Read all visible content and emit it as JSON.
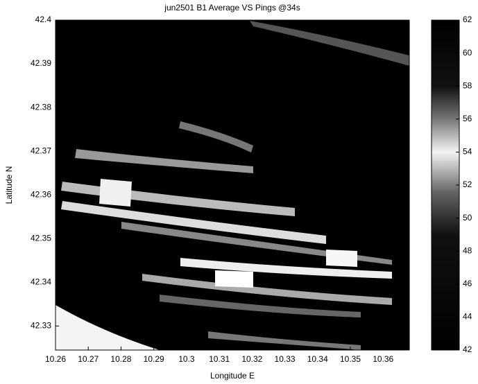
{
  "chart_data": {
    "type": "heatmap",
    "title": "jun2501 B1 Average VS Pings @34s",
    "x_label": "Longitude E",
    "y_label": "Latitude N",
    "xlim": [
      10.26,
      10.368
    ],
    "ylim": [
      42.3245,
      42.4
    ],
    "xticks": [
      10.26,
      10.27,
      10.28,
      10.29,
      10.3,
      10.31,
      10.32,
      10.33,
      10.34,
      10.35,
      10.36
    ],
    "yticks": [
      42.33,
      42.34,
      42.35,
      42.36,
      42.37,
      42.38,
      42.39,
      42.4
    ],
    "colorbar": {
      "lim": [
        42,
        62
      ],
      "ticks": [
        42,
        44,
        46,
        48,
        50,
        52,
        54,
        56,
        58,
        60,
        62
      ]
    }
  }
}
